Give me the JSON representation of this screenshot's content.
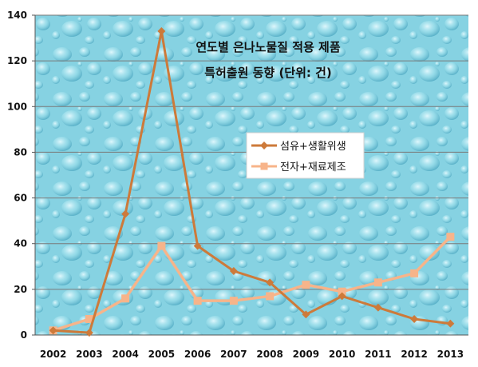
{
  "chart_data": {
    "type": "line",
    "title_lines": [
      "연도별 은나노물질 적용 제품",
      "특허출원 동향 (단위: 건)"
    ],
    "categories": [
      "2002",
      "2003",
      "2004",
      "2005",
      "2006",
      "2007",
      "2008",
      "2009",
      "2010",
      "2011",
      "2012",
      "2013"
    ],
    "y_ticks": [
      "0",
      "20",
      "40",
      "60",
      "80",
      "100",
      "120",
      "140"
    ],
    "ylim": [
      0,
      140
    ],
    "grid": true,
    "legend_position": "middle-right",
    "series": [
      {
        "name": "섬유+생활위생",
        "color": "#cd7a3a",
        "marker": "diamond",
        "values": [
          2,
          1,
          53,
          133,
          39,
          28,
          23,
          9,
          17,
          12,
          7,
          5
        ]
      },
      {
        "name": "전자+재료제조",
        "color": "#f7b48a",
        "marker": "square",
        "values": [
          2,
          7,
          16,
          39,
          15,
          15,
          17,
          22,
          19,
          23,
          27,
          43
        ]
      }
    ]
  }
}
